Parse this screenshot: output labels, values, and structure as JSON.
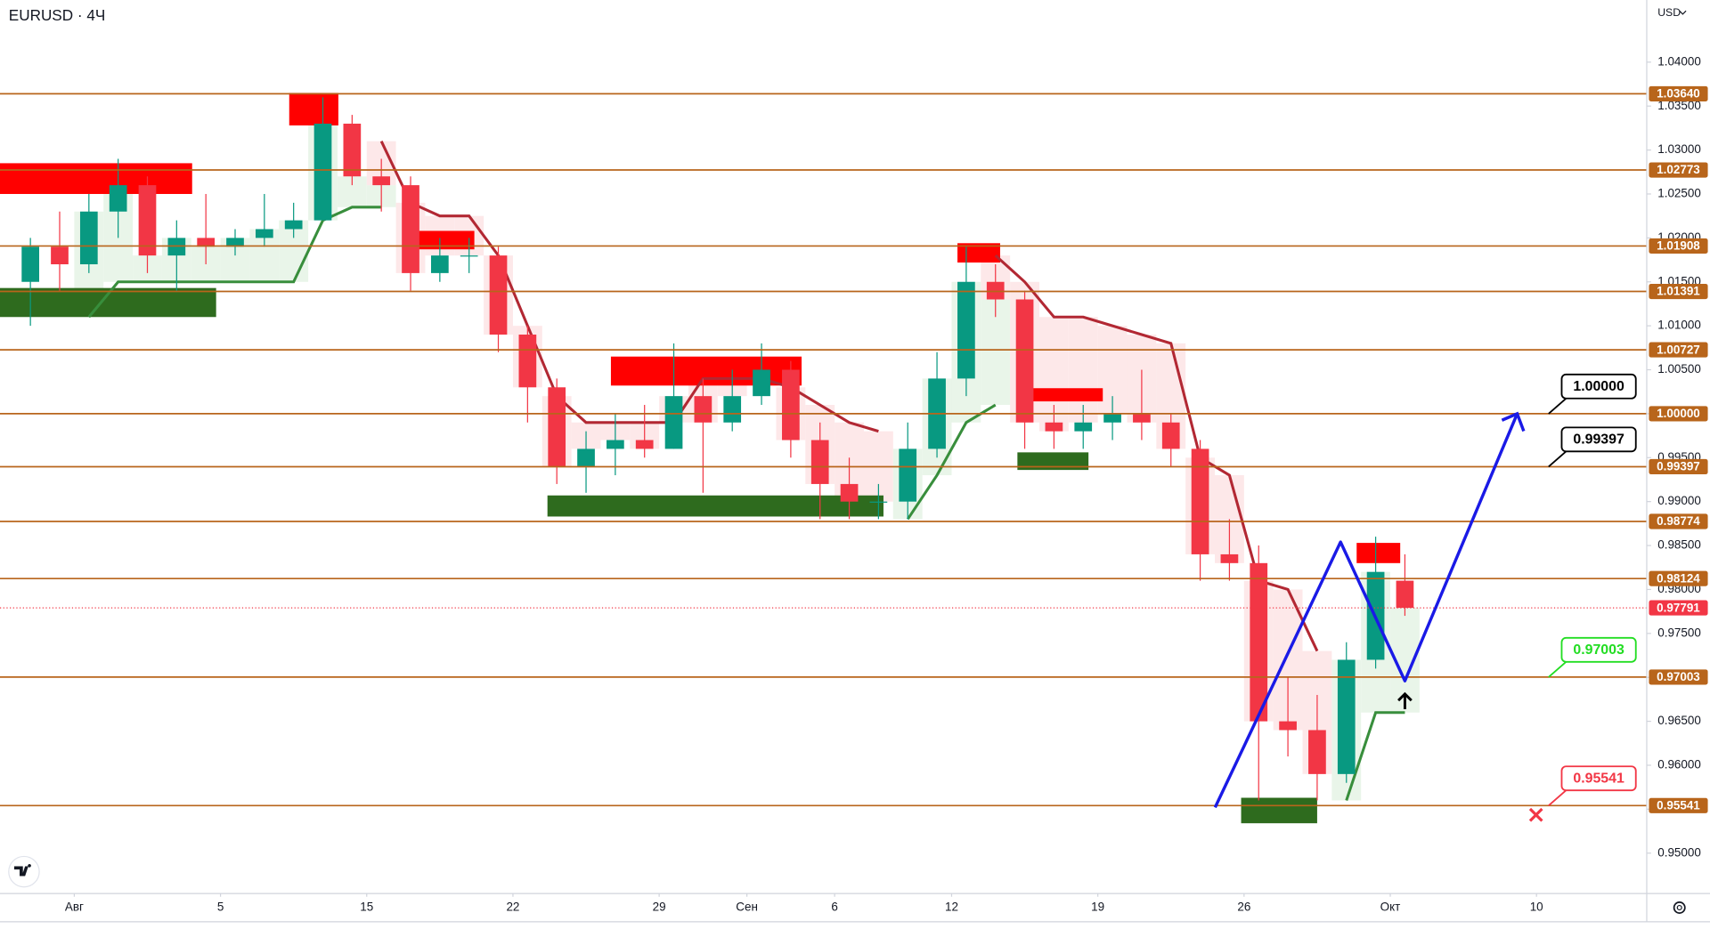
{
  "chart_data": {
    "type": "candlestick",
    "title": "EURUSD · 4Ч",
    "currency": "USD",
    "xlim": [
      -2.54,
      53.77
    ],
    "xticks": [
      {
        "value": 0,
        "label": "Авг"
      },
      5,
      {
        "value": 10,
        "label": "15"
      },
      {
        "value": 15,
        "label": "22"
      },
      {
        "value": 20,
        "label": "29"
      },
      {
        "value": 23,
        "label": "Сен"
      },
      {
        "value": 26,
        "label": "6"
      },
      {
        "value": 30,
        "label": "12"
      },
      {
        "value": 35,
        "label": "19"
      },
      {
        "value": 40,
        "label": "26"
      },
      {
        "value": 45,
        "label": "Окт"
      },
      {
        "value": 50,
        "label": "10"
      }
    ],
    "ylim": [
      0.94541,
      1.04707
    ],
    "yticks": [
      {
        "value": 1.04,
        "label": "1.04000"
      },
      {
        "value": 1.035,
        "label": "1.03500"
      },
      {
        "value": 1.03,
        "label": "1.03000"
      },
      {
        "value": 1.025,
        "label": "1.02500"
      },
      {
        "value": 1.02,
        "label": "1.02000"
      },
      {
        "value": 1.015,
        "label": "1.01500"
      },
      {
        "value": 1.01,
        "label": "1.01000"
      },
      {
        "value": 1.005,
        "label": "1.00500"
      },
      {
        "value": 1.0,
        "label": "1.00000"
      },
      {
        "value": 0.995,
        "label": "0.99500"
      },
      {
        "value": 0.99,
        "label": "0.99000"
      },
      {
        "value": 0.985,
        "label": "0.98500"
      },
      {
        "value": 0.98,
        "label": "0.98000"
      },
      {
        "value": 0.975,
        "label": "0.97500"
      },
      {
        "value": 0.97,
        "label": "0.97000"
      },
      {
        "value": 0.965,
        "label": "0.96500"
      },
      {
        "value": 0.96,
        "label": "0.96000"
      },
      {
        "value": 0.955,
        "label": "0.95500"
      },
      {
        "value": 0.95,
        "label": "0.95000"
      }
    ],
    "up_color": "#089981",
    "down_color": "#f23645",
    "x": [
      -1.5,
      -0.5,
      0.5,
      1.5,
      2.5,
      3.5,
      4.5,
      5.5,
      6.5,
      7.5,
      8.5,
      9.5,
      10.5,
      11.5,
      12.5,
      13.5,
      14.5,
      15.5,
      16.5,
      17.5,
      18.5,
      19.5,
      20.5,
      21.5,
      22.5,
      23.5,
      24.5,
      25.5,
      26.5,
      27.5,
      28.5,
      29.5,
      30.5,
      31.5,
      32.5,
      33.5,
      34.5,
      35.5,
      36.5,
      37.5,
      38.5,
      39.5,
      40.5,
      41.5,
      42.5,
      43.5,
      44.5,
      45.5
    ],
    "open": [
      1.015,
      1.019,
      1.017,
      1.023,
      1.026,
      1.018,
      1.02,
      1.019,
      1.02,
      1.021,
      1.022,
      1.033,
      1.027,
      1.026,
      1.016,
      1.018,
      1.018,
      1.009,
      1.003,
      0.994,
      0.996,
      0.997,
      0.996,
      1.002,
      0.999,
      1.002,
      1.005,
      0.997,
      0.992,
      0.99,
      0.99,
      0.996,
      1.004,
      1.015,
      1.013,
      0.999,
      0.998,
      0.999,
      1.0,
      0.999,
      0.996,
      0.984,
      0.983,
      0.965,
      0.964,
      0.959,
      0.972,
      0.981
    ],
    "high": [
      1.02,
      1.023,
      1.025,
      1.029,
      1.027,
      1.022,
      1.025,
      1.021,
      1.025,
      1.024,
      1.036,
      1.034,
      1.029,
      1.027,
      1.02,
      1.02,
      1.019,
      1.01,
      1.004,
      0.998,
      1.0,
      1.001,
      1.008,
      1.004,
      1.005,
      1.008,
      1.006,
      0.999,
      0.995,
      0.992,
      0.999,
      1.007,
      1.019,
      1.017,
      1.014,
      1.001,
      1.001,
      1.002,
      1.005,
      1.0,
      0.997,
      0.988,
      0.985,
      0.97,
      0.968,
      0.974,
      0.986,
      0.984
    ],
    "low": [
      1.01,
      1.014,
      1.016,
      1.02,
      1.016,
      1.014,
      1.017,
      1.018,
      1.019,
      1.02,
      1.022,
      1.026,
      1.023,
      1.014,
      1.015,
      1.016,
      1.007,
      0.999,
      0.992,
      0.991,
      0.993,
      0.995,
      0.996,
      0.991,
      0.998,
      1.001,
      0.995,
      0.988,
      0.988,
      0.988,
      0.988,
      0.995,
      1.002,
      1.011,
      0.996,
      0.996,
      0.996,
      0.997,
      0.997,
      0.994,
      0.981,
      0.981,
      0.956,
      0.961,
      0.956,
      0.958,
      0.971,
      0.977
    ],
    "close": [
      1.019,
      1.017,
      1.023,
      1.026,
      1.018,
      1.02,
      1.019,
      1.02,
      1.021,
      1.022,
      1.033,
      1.027,
      1.026,
      1.016,
      1.018,
      1.018,
      1.009,
      1.003,
      0.994,
      0.996,
      0.997,
      0.996,
      1.002,
      0.999,
      1.002,
      1.005,
      0.997,
      0.992,
      0.99,
      0.99,
      0.996,
      1.004,
      1.015,
      1.013,
      0.999,
      0.998,
      0.999,
      1.0,
      0.999,
      0.996,
      0.984,
      0.983,
      0.965,
      0.964,
      0.959,
      0.972,
      0.982,
      0.97791
    ],
    "supertrend_up_color": "#388e3c",
    "supertrend_down_color": "#b22833",
    "supertrend_up": [
      null,
      null,
      1.011,
      1.015,
      1.015,
      1.015,
      1.015,
      1.015,
      1.015,
      1.015,
      1.022,
      1.0235,
      1.0235,
      null,
      null,
      null,
      null,
      null,
      null,
      null,
      null,
      null,
      null,
      null,
      null,
      null,
      null,
      null,
      null,
      null,
      0.988,
      0.993,
      0.999,
      1.001,
      null,
      null,
      null,
      null,
      null,
      null,
      null,
      null,
      null,
      null,
      null,
      0.956,
      0.966,
      0.966
    ],
    "supertrend_down": [
      null,
      null,
      null,
      null,
      null,
      null,
      null,
      null,
      null,
      null,
      null,
      null,
      1.031,
      1.024,
      1.0225,
      1.0225,
      1.018,
      1.01,
      1.002,
      0.999,
      0.999,
      0.999,
      0.999,
      1.004,
      1.004,
      1.004,
      1.003,
      1.001,
      0.999,
      0.998,
      null,
      null,
      null,
      1.018,
      1.015,
      1.011,
      1.011,
      1.01,
      1.009,
      1.008,
      0.995,
      0.993,
      0.981,
      0.98,
      0.973,
      null,
      null,
      null
    ],
    "zones": [
      {
        "x": [
          -2.54,
          4.03
        ],
        "y": [
          1.025,
          1.0285
        ],
        "color": "#ff0000"
      },
      {
        "x": [
          -2.54,
          4.85
        ],
        "y": [
          1.011,
          1.0143
        ],
        "color": "#2e6b1e"
      },
      {
        "x": [
          7.35,
          9.03
        ],
        "y": [
          1.0328,
          1.0365
        ],
        "color": "#ff0000"
      },
      {
        "x": [
          11.52,
          13.68
        ],
        "y": [
          1.0187,
          1.0208
        ],
        "color": "#ff0000"
      },
      {
        "x": [
          18.35,
          24.87
        ],
        "y": [
          1.0032,
          1.0065
        ],
        "color": "#ff0000"
      },
      {
        "x": [
          16.18,
          27.67
        ],
        "y": [
          0.9883,
          0.9907
        ],
        "color": "#2e6b1e"
      },
      {
        "x": [
          30.2,
          31.66
        ],
        "y": [
          1.0172,
          1.0194
        ],
        "color": "#ff0000"
      },
      {
        "x": [
          32.33,
          35.17
        ],
        "y": [
          1.0014,
          1.0029
        ],
        "color": "#ff0000"
      },
      {
        "x": [
          32.25,
          34.68
        ],
        "y": [
          0.9936,
          0.9956
        ],
        "color": "#2e6b1e"
      },
      {
        "x": [
          43.85,
          45.34
        ],
        "y": [
          0.983,
          0.9853
        ],
        "color": "#ff0000"
      },
      {
        "x": [
          39.9,
          42.5
        ],
        "y": [
          0.9534,
          0.9563
        ],
        "color": "#2e6b1e"
      }
    ],
    "projection": {
      "x": [
        39.01,
        43.3,
        45.5,
        49.34
      ],
      "values": [
        0.9552,
        0.9854,
        0.9696,
        1.0
      ],
      "color": "#1a1ae6"
    },
    "level_color": "#b8651b",
    "levels": [
      {
        "value": 1.0364,
        "label": "1.03640"
      },
      {
        "value": 1.02773,
        "label": "1.02773"
      },
      {
        "value": 1.01908,
        "label": "1.01908"
      },
      {
        "value": 1.01391,
        "label": "1.01391"
      },
      {
        "value": 1.00727,
        "label": "1.00727"
      },
      {
        "value": 1.0,
        "label": "1.00000"
      },
      {
        "value": 0.99397,
        "label": "0.99397"
      },
      {
        "value": 0.98774,
        "label": "0.98774"
      },
      {
        "value": 0.98124,
        "label": "0.98124"
      },
      {
        "value": 0.97003,
        "label": "0.97003"
      },
      {
        "value": 0.95541,
        "label": "0.95541"
      }
    ],
    "last_price": {
      "value": 0.97791,
      "label": "0.97791",
      "color": "#f23645"
    },
    "callouts": [
      {
        "value": 1.0,
        "label": "1.00000",
        "color": "#000000"
      },
      {
        "value": 0.99397,
        "label": "0.99397",
        "color": "#000000"
      },
      {
        "value": 0.97003,
        "label": "0.97003",
        "color": "#22dd22"
      },
      {
        "value": 0.95541,
        "label": "0.95541",
        "color": "#f23645"
      }
    ]
  }
}
